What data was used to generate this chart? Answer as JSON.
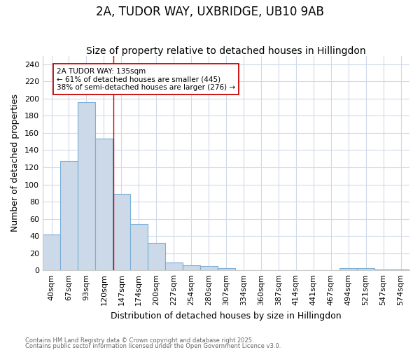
{
  "title1": "2A, TUDOR WAY, UXBRIDGE, UB10 9AB",
  "title2": "Size of property relative to detached houses in Hillingdon",
  "xlabel": "Distribution of detached houses by size in Hillingdon",
  "ylabel": "Number of detached properties",
  "bar_labels": [
    "40sqm",
    "67sqm",
    "93sqm",
    "120sqm",
    "147sqm",
    "174sqm",
    "200sqm",
    "227sqm",
    "254sqm",
    "280sqm",
    "307sqm",
    "334sqm",
    "360sqm",
    "387sqm",
    "414sqm",
    "441sqm",
    "467sqm",
    "494sqm",
    "521sqm",
    "547sqm",
    "574sqm"
  ],
  "bar_values": [
    42,
    127,
    196,
    153,
    89,
    54,
    32,
    9,
    6,
    5,
    3,
    0,
    0,
    0,
    0,
    0,
    0,
    3,
    3,
    1,
    1
  ],
  "bar_color": "#ccd9e8",
  "bar_edgecolor": "#7aaed6",
  "ylim": [
    0,
    250
  ],
  "yticks": [
    0,
    20,
    40,
    60,
    80,
    100,
    120,
    140,
    160,
    180,
    200,
    220,
    240
  ],
  "property_line_x": 3.56,
  "property_line_color": "#cc0000",
  "annotation_text": "2A TUDOR WAY: 135sqm\n← 61% of detached houses are smaller (445)\n38% of semi-detached houses are larger (276) →",
  "footnote1": "Contains HM Land Registry data © Crown copyright and database right 2025.",
  "footnote2": "Contains public sector information licensed under the Open Government Licence v3.0.",
  "background_color": "#ffffff",
  "grid_color": "#d0daea",
  "title_fontsize": 12,
  "subtitle_fontsize": 10,
  "axis_label_fontsize": 9,
  "tick_fontsize": 8,
  "ylabel_fontsize": 9
}
